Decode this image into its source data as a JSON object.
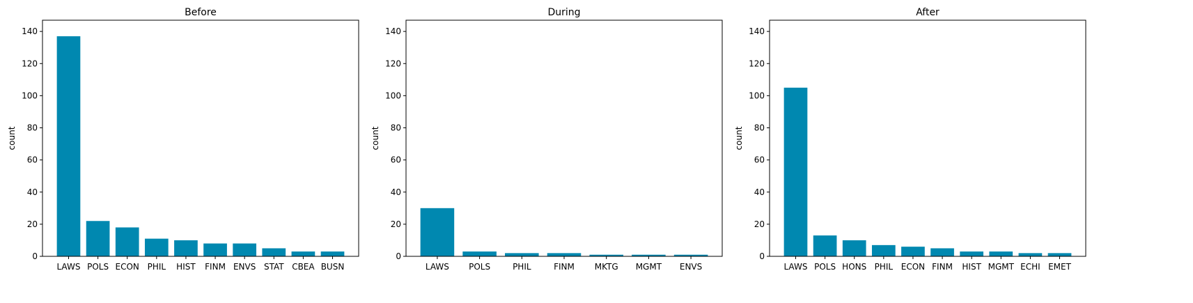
{
  "colors": {
    "bar": "#0088B0",
    "axis": "#000000",
    "background": "#ffffff"
  },
  "chart_data": [
    {
      "type": "bar",
      "title": "Before",
      "xlabel": "",
      "ylabel": "count",
      "ylim": [
        0,
        147
      ],
      "yticks": [
        0,
        20,
        40,
        60,
        80,
        100,
        120,
        140
      ],
      "grid": false,
      "categories": [
        "LAWS",
        "POLS",
        "ECON",
        "PHIL",
        "HIST",
        "FINM",
        "ENVS",
        "STAT",
        "CBEA",
        "BUSN"
      ],
      "values": [
        137,
        22,
        18,
        11,
        10,
        8,
        8,
        5,
        3,
        3
      ]
    },
    {
      "type": "bar",
      "title": "During",
      "xlabel": "",
      "ylabel": "count",
      "ylim": [
        0,
        147
      ],
      "yticks": [
        0,
        20,
        40,
        60,
        80,
        100,
        120,
        140
      ],
      "grid": false,
      "categories": [
        "LAWS",
        "POLS",
        "PHIL",
        "FINM",
        "MKTG",
        "MGMT",
        "ENVS"
      ],
      "values": [
        30,
        3,
        2,
        2,
        1,
        1,
        1
      ]
    },
    {
      "type": "bar",
      "title": "After",
      "xlabel": "",
      "ylabel": "count",
      "ylim": [
        0,
        147
      ],
      "yticks": [
        0,
        20,
        40,
        60,
        80,
        100,
        120,
        140
      ],
      "grid": false,
      "categories": [
        "LAWS",
        "POLS",
        "HONS",
        "PHIL",
        "ECON",
        "FINM",
        "HIST",
        "MGMT",
        "ECHI",
        "EMET"
      ],
      "values": [
        105,
        13,
        10,
        7,
        6,
        5,
        3,
        3,
        2,
        2
      ]
    }
  ]
}
